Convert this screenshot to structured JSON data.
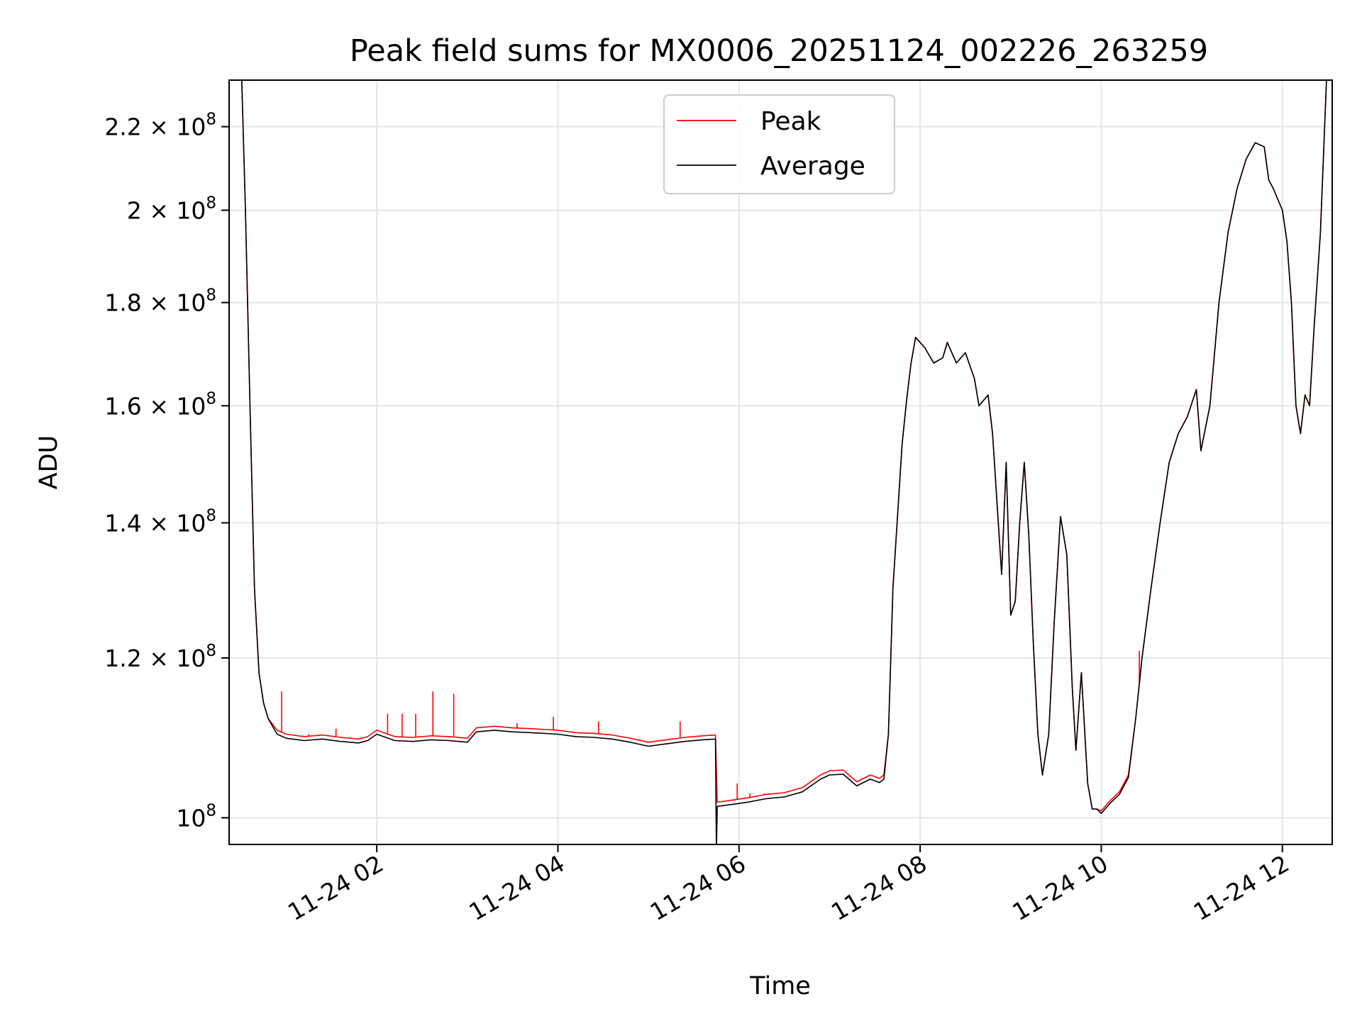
{
  "chart_data": {
    "type": "line",
    "title": "Peak field sums for MX0006_20251124_002226_263259",
    "xlabel": "Time",
    "ylabel": "ADU",
    "yscale": "log",
    "grid": true,
    "legend_position": "top-center",
    "xlim": [
      0.37,
      12.55
    ],
    "ylim": [
      97000000,
      232000000
    ],
    "x_ticks": [
      {
        "value": 2,
        "label": "11-24 02"
      },
      {
        "value": 4,
        "label": "11-24 04"
      },
      {
        "value": 6,
        "label": "11-24 06"
      },
      {
        "value": 8,
        "label": "11-24 08"
      },
      {
        "value": 10,
        "label": "11-24 10"
      },
      {
        "value": 12,
        "label": "11-24 12"
      }
    ],
    "y_ticks": [
      {
        "value": 100000000,
        "mantissa": "",
        "exp": "8"
      },
      {
        "value": 120000000,
        "mantissa": "1.2",
        "exp": "8"
      },
      {
        "value": 140000000,
        "mantissa": "1.4",
        "exp": "8"
      },
      {
        "value": 160000000,
        "mantissa": "1.6",
        "exp": "8"
      },
      {
        "value": 180000000,
        "mantissa": "1.8",
        "exp": "8"
      },
      {
        "value": 200000000,
        "mantissa": "2",
        "exp": "8"
      },
      {
        "value": 220000000,
        "mantissa": "2.2",
        "exp": "8"
      }
    ],
    "tick_times_sign": "×",
    "tick_base": "10",
    "x_unit": "hours since 2025-11-24 00:00",
    "series": [
      {
        "name": "Peak",
        "color": "#ff0000",
        "points": [
          [
            0.37,
            240000000
          ],
          [
            0.5,
            240000000
          ],
          [
            0.55,
            200000000
          ],
          [
            0.6,
            160000000
          ],
          [
            0.65,
            130000000
          ],
          [
            0.7,
            118000000
          ],
          [
            0.75,
            114000000
          ],
          [
            0.8,
            112000000
          ],
          [
            0.9,
            110500000
          ],
          [
            1.0,
            110000000
          ],
          [
            1.2,
            109700000
          ],
          [
            1.4,
            109900000
          ],
          [
            1.6,
            109600000
          ],
          [
            1.8,
            109400000
          ],
          [
            1.9,
            109700000
          ],
          [
            2.0,
            110500000
          ],
          [
            2.2,
            109700000
          ],
          [
            2.4,
            109600000
          ],
          [
            2.6,
            109800000
          ],
          [
            2.8,
            109700000
          ],
          [
            3.0,
            109500000
          ],
          [
            3.1,
            110800000
          ],
          [
            3.3,
            111000000
          ],
          [
            3.5,
            110800000
          ],
          [
            3.7,
            110700000
          ],
          [
            4.0,
            110500000
          ],
          [
            4.2,
            110200000
          ],
          [
            4.4,
            110100000
          ],
          [
            4.6,
            109900000
          ],
          [
            4.8,
            109500000
          ],
          [
            5.0,
            109000000
          ],
          [
            5.2,
            109300000
          ],
          [
            5.4,
            109600000
          ],
          [
            5.6,
            109800000
          ],
          [
            5.74,
            109900000
          ],
          [
            5.76,
            101800000
          ],
          [
            5.9,
            102000000
          ],
          [
            6.1,
            102300000
          ],
          [
            6.3,
            102700000
          ],
          [
            6.5,
            102900000
          ],
          [
            6.7,
            103500000
          ],
          [
            6.9,
            105000000
          ],
          [
            7.0,
            105500000
          ],
          [
            7.15,
            105600000
          ],
          [
            7.3,
            104200000
          ],
          [
            7.45,
            105000000
          ],
          [
            7.55,
            104600000
          ],
          [
            7.6,
            105000000
          ],
          [
            7.65,
            110000000
          ],
          [
            7.7,
            130000000
          ],
          [
            7.75,
            141000000
          ],
          [
            7.8,
            153000000
          ],
          [
            7.85,
            161000000
          ],
          [
            7.9,
            168000000
          ],
          [
            7.95,
            173000000
          ],
          [
            8.05,
            171000000
          ],
          [
            8.15,
            168000000
          ],
          [
            8.25,
            169000000
          ],
          [
            8.3,
            172000000
          ],
          [
            8.4,
            168000000
          ],
          [
            8.5,
            170000000
          ],
          [
            8.6,
            165000000
          ],
          [
            8.65,
            160000000
          ],
          [
            8.75,
            162000000
          ],
          [
            8.8,
            155000000
          ],
          [
            8.9,
            132000000
          ],
          [
            8.95,
            150000000
          ],
          [
            9.0,
            126000000
          ],
          [
            9.05,
            128000000
          ],
          [
            9.1,
            140000000
          ],
          [
            9.15,
            150000000
          ],
          [
            9.2,
            138000000
          ],
          [
            9.25,
            122000000
          ],
          [
            9.3,
            110000000
          ],
          [
            9.35,
            105000000
          ],
          [
            9.42,
            110000000
          ],
          [
            9.48,
            125000000
          ],
          [
            9.55,
            141000000
          ],
          [
            9.62,
            135000000
          ],
          [
            9.68,
            116000000
          ],
          [
            9.72,
            108000000
          ],
          [
            9.78,
            118000000
          ],
          [
            9.85,
            104000000
          ],
          [
            9.9,
            101000000
          ],
          [
            9.95,
            101000000
          ],
          [
            10.0,
            100800000
          ],
          [
            10.1,
            102000000
          ],
          [
            10.2,
            103000000
          ],
          [
            10.25,
            104000000
          ],
          [
            10.3,
            105000000
          ],
          [
            10.38,
            112000000
          ],
          [
            10.45,
            120000000
          ],
          [
            10.55,
            130000000
          ],
          [
            10.65,
            140000000
          ],
          [
            10.75,
            150000000
          ],
          [
            10.85,
            155000000
          ],
          [
            10.95,
            158000000
          ],
          [
            11.05,
            163000000
          ],
          [
            11.1,
            152000000
          ],
          [
            11.2,
            160000000
          ],
          [
            11.3,
            180000000
          ],
          [
            11.4,
            195000000
          ],
          [
            11.5,
            205000000
          ],
          [
            11.6,
            212000000
          ],
          [
            11.7,
            216000000
          ],
          [
            11.8,
            215000000
          ],
          [
            11.85,
            207000000
          ],
          [
            11.9,
            205000000
          ],
          [
            12.0,
            200000000
          ],
          [
            12.05,
            193000000
          ],
          [
            12.1,
            180000000
          ],
          [
            12.15,
            160000000
          ],
          [
            12.2,
            155000000
          ],
          [
            12.25,
            162000000
          ],
          [
            12.3,
            160000000
          ],
          [
            12.35,
            175000000
          ],
          [
            12.42,
            195000000
          ],
          [
            12.5,
            240000000
          ],
          [
            12.55,
            240000000
          ]
        ],
        "spikes": [
          [
            0.95,
            115500000
          ],
          [
            1.25,
            110000000
          ],
          [
            1.55,
            110700000
          ],
          [
            2.12,
            112600000
          ],
          [
            2.28,
            112600000
          ],
          [
            2.43,
            112600000
          ],
          [
            2.62,
            115500000
          ],
          [
            2.85,
            115200000
          ],
          [
            3.35,
            110900000
          ],
          [
            3.55,
            111400000
          ],
          [
            3.95,
            112200000
          ],
          [
            4.45,
            111600000
          ],
          [
            5.35,
            111600000
          ],
          [
            5.98,
            104000000
          ],
          [
            6.12,
            102800000
          ],
          [
            6.28,
            102800000
          ],
          [
            10.42,
            121000000
          ]
        ]
      },
      {
        "name": "Average",
        "color": "#000000",
        "points": [
          [
            0.37,
            240000000
          ],
          [
            0.5,
            240000000
          ],
          [
            0.55,
            200000000
          ],
          [
            0.6,
            160000000
          ],
          [
            0.65,
            130000000
          ],
          [
            0.7,
            118000000
          ],
          [
            0.75,
            114000000
          ],
          [
            0.8,
            112000000
          ],
          [
            0.9,
            110000000
          ],
          [
            1.0,
            109500000
          ],
          [
            1.2,
            109200000
          ],
          [
            1.4,
            109400000
          ],
          [
            1.6,
            109100000
          ],
          [
            1.8,
            108900000
          ],
          [
            1.9,
            109200000
          ],
          [
            2.0,
            110000000
          ],
          [
            2.2,
            109200000
          ],
          [
            2.4,
            109100000
          ],
          [
            2.6,
            109300000
          ],
          [
            2.8,
            109200000
          ],
          [
            3.0,
            109000000
          ],
          [
            3.1,
            110300000
          ],
          [
            3.3,
            110500000
          ],
          [
            3.5,
            110300000
          ],
          [
            3.7,
            110200000
          ],
          [
            4.0,
            110000000
          ],
          [
            4.2,
            109700000
          ],
          [
            4.4,
            109600000
          ],
          [
            4.6,
            109400000
          ],
          [
            4.8,
            109000000
          ],
          [
            5.0,
            108500000
          ],
          [
            5.2,
            108800000
          ],
          [
            5.4,
            109100000
          ],
          [
            5.6,
            109300000
          ],
          [
            5.74,
            109400000
          ],
          [
            5.75,
            96000000
          ],
          [
            5.76,
            101300000
          ],
          [
            5.9,
            101500000
          ],
          [
            6.1,
            101800000
          ],
          [
            6.3,
            102200000
          ],
          [
            6.5,
            102400000
          ],
          [
            6.7,
            103000000
          ],
          [
            6.9,
            104500000
          ],
          [
            7.0,
            105000000
          ],
          [
            7.15,
            105100000
          ],
          [
            7.3,
            103700000
          ],
          [
            7.45,
            104500000
          ],
          [
            7.55,
            104100000
          ],
          [
            7.6,
            104500000
          ],
          [
            7.65,
            110000000
          ],
          [
            7.7,
            130000000
          ],
          [
            7.75,
            141000000
          ],
          [
            7.8,
            153000000
          ],
          [
            7.85,
            161000000
          ],
          [
            7.9,
            168000000
          ],
          [
            7.95,
            173000000
          ],
          [
            8.05,
            171000000
          ],
          [
            8.15,
            168000000
          ],
          [
            8.25,
            169000000
          ],
          [
            8.3,
            172000000
          ],
          [
            8.4,
            168000000
          ],
          [
            8.5,
            170000000
          ],
          [
            8.6,
            165000000
          ],
          [
            8.65,
            160000000
          ],
          [
            8.75,
            162000000
          ],
          [
            8.8,
            155000000
          ],
          [
            8.9,
            132000000
          ],
          [
            8.95,
            150000000
          ],
          [
            9.0,
            126000000
          ],
          [
            9.05,
            128000000
          ],
          [
            9.1,
            140000000
          ],
          [
            9.15,
            150000000
          ],
          [
            9.2,
            138000000
          ],
          [
            9.25,
            122000000
          ],
          [
            9.3,
            110000000
          ],
          [
            9.35,
            105000000
          ],
          [
            9.42,
            110000000
          ],
          [
            9.48,
            125000000
          ],
          [
            9.55,
            141000000
          ],
          [
            9.62,
            135000000
          ],
          [
            9.68,
            116000000
          ],
          [
            9.72,
            108000000
          ],
          [
            9.78,
            118000000
          ],
          [
            9.85,
            104000000
          ],
          [
            9.9,
            101000000
          ],
          [
            9.95,
            101000000
          ],
          [
            10.0,
            100500000
          ],
          [
            10.1,
            101700000
          ],
          [
            10.2,
            102700000
          ],
          [
            10.25,
            103700000
          ],
          [
            10.3,
            104700000
          ],
          [
            10.38,
            112000000
          ],
          [
            10.45,
            120000000
          ],
          [
            10.55,
            130000000
          ],
          [
            10.65,
            140000000
          ],
          [
            10.75,
            150000000
          ],
          [
            10.85,
            155000000
          ],
          [
            10.95,
            158000000
          ],
          [
            11.05,
            163000000
          ],
          [
            11.1,
            152000000
          ],
          [
            11.2,
            160000000
          ],
          [
            11.3,
            180000000
          ],
          [
            11.4,
            195000000
          ],
          [
            11.5,
            205000000
          ],
          [
            11.6,
            212000000
          ],
          [
            11.7,
            216000000
          ],
          [
            11.8,
            215000000
          ],
          [
            11.85,
            207000000
          ],
          [
            11.9,
            205000000
          ],
          [
            12.0,
            200000000
          ],
          [
            12.05,
            193000000
          ],
          [
            12.1,
            180000000
          ],
          [
            12.15,
            160000000
          ],
          [
            12.2,
            155000000
          ],
          [
            12.25,
            162000000
          ],
          [
            12.3,
            160000000
          ],
          [
            12.35,
            175000000
          ],
          [
            12.42,
            195000000
          ],
          [
            12.5,
            240000000
          ],
          [
            12.55,
            240000000
          ]
        ]
      }
    ]
  }
}
